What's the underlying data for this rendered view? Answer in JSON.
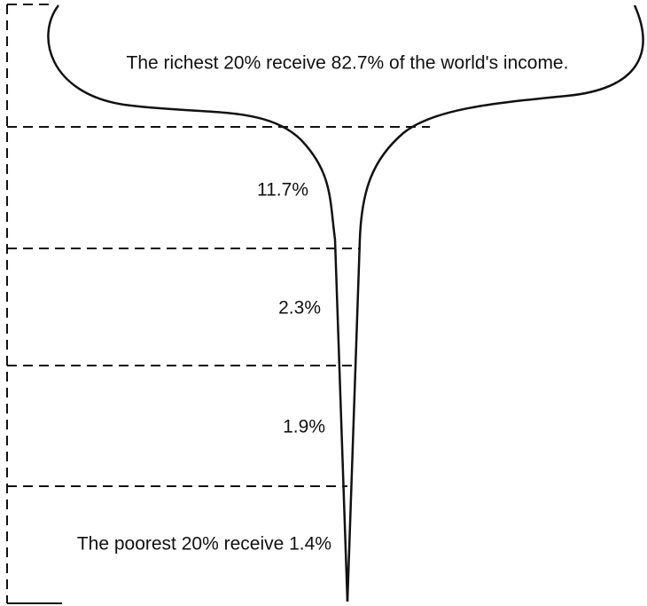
{
  "diagram": {
    "labels": [
      "The richest 20% receive 82.7% of the world's income.",
      "11.7%",
      "2.3%",
      "1.9%",
      "The poorest 20% receive 1.4%"
    ]
  }
}
